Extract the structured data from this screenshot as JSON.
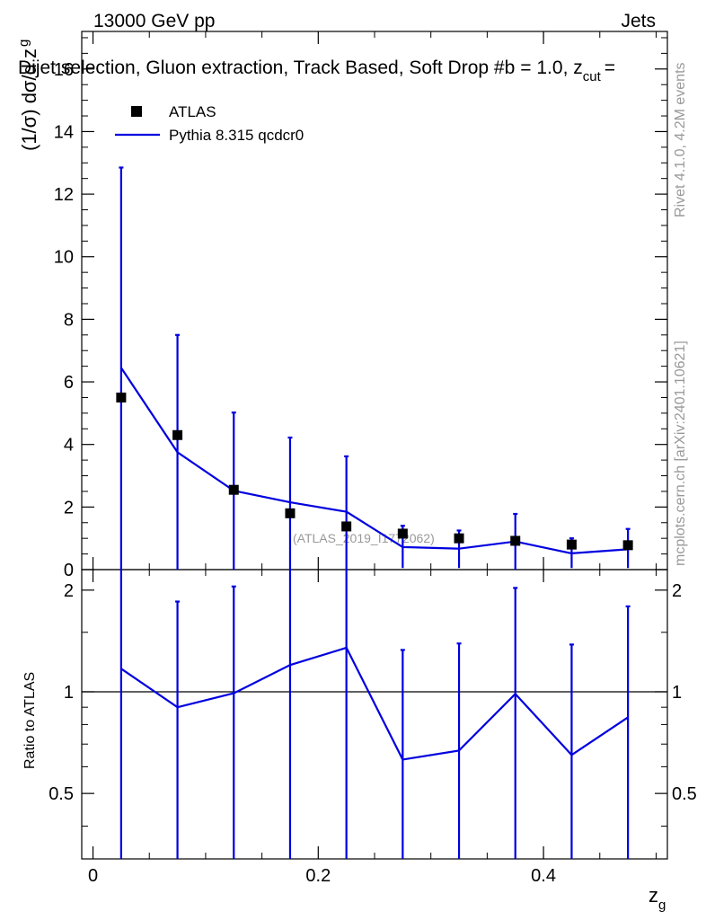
{
  "header": {
    "left": "13000 GeV pp",
    "right": "Jets",
    "title": "Dijet selection, Gluon extraction, Track Based, Soft Drop #b",
    "title_suffix": "= 1.0, z",
    "title_sub": "cut",
    "title_end": "="
  },
  "side": {
    "rivet": "Rivet 4.1.0,  4.2M events",
    "mcplots": "mcplots.cern.ch [arXiv:2401.10621]"
  },
  "watermark": "(ATLAS_2019_I1772062)",
  "legend": {
    "data": "ATLAS",
    "mc": "Pythia 8.315 qcdcr0"
  },
  "colors": {
    "data": "#000000",
    "mc": "#0000e0",
    "axis": "#000000",
    "watermark": "#999999"
  },
  "chart_data": [
    {
      "type": "scatter",
      "panel": "main",
      "ylabel": "(1/σ) dσ/d z",
      "ylabel_sub": "g",
      "xlim": [
        -0.01,
        0.51
      ],
      "ylim": [
        0,
        17.2
      ],
      "y_ticks": [
        0,
        2,
        4,
        6,
        8,
        10,
        12,
        14,
        16
      ],
      "y_tick_labels": [
        "0",
        "2",
        "4",
        "6",
        "8",
        "10",
        "12",
        "14",
        "16"
      ],
      "series": [
        {
          "name": "ATLAS",
          "style": "markers",
          "x": [
            0.025,
            0.075,
            0.125,
            0.175,
            0.225,
            0.275,
            0.325,
            0.375,
            0.425,
            0.475
          ],
          "y": [
            5.5,
            4.3,
            2.55,
            1.8,
            1.38,
            1.15,
            1.0,
            0.92,
            0.8,
            0.78
          ]
        },
        {
          "name": "Pythia 8.315 qcdcr0",
          "style": "line",
          "x": [
            0.025,
            0.075,
            0.125,
            0.175,
            0.225,
            0.275,
            0.325,
            0.375,
            0.425,
            0.475
          ],
          "y": [
            6.45,
            3.75,
            2.52,
            2.15,
            1.85,
            0.72,
            0.67,
            0.9,
            0.52,
            0.65
          ],
          "err_up": [
            12.85,
            7.5,
            5.02,
            4.22,
            3.62,
            1.4,
            1.25,
            1.78,
            1.0,
            1.3
          ],
          "err_down": [
            0,
            0,
            0,
            0,
            0,
            0.05,
            0.05,
            0,
            0.05,
            0.05
          ]
        }
      ]
    },
    {
      "type": "line",
      "panel": "ratio",
      "ylabel": "Ratio to ATLAS",
      "xlabel": "z",
      "xlabel_sub": "g",
      "xlim": [
        -0.01,
        0.51
      ],
      "ylim": [
        0.32,
        2.3
      ],
      "y_ticks": [
        0.5,
        1,
        2
      ],
      "y_tick_labels": [
        "0.5",
        "1",
        "2"
      ],
      "x_ticks": [
        0,
        0.2,
        0.4
      ],
      "x_tick_labels": [
        "0",
        "0.2",
        "0.4"
      ],
      "reference": 1,
      "series": [
        {
          "name": "Pythia 8.315 qcdcr0",
          "x": [
            0.025,
            0.075,
            0.125,
            0.175,
            0.225,
            0.275,
            0.325,
            0.375,
            0.425,
            0.475
          ],
          "y": [
            1.17,
            0.9,
            0.99,
            1.2,
            1.35,
            0.63,
            0.67,
            0.985,
            0.65,
            0.84
          ],
          "err_up": [
            2.4,
            1.85,
            2.05,
            2.5,
            2.5,
            1.33,
            1.39,
            2.03,
            1.38,
            1.79
          ],
          "err_down": [
            0.32,
            0.32,
            0.32,
            0.32,
            0.32,
            0.32,
            0.32,
            0.32,
            0.32,
            0.32
          ]
        }
      ]
    }
  ]
}
